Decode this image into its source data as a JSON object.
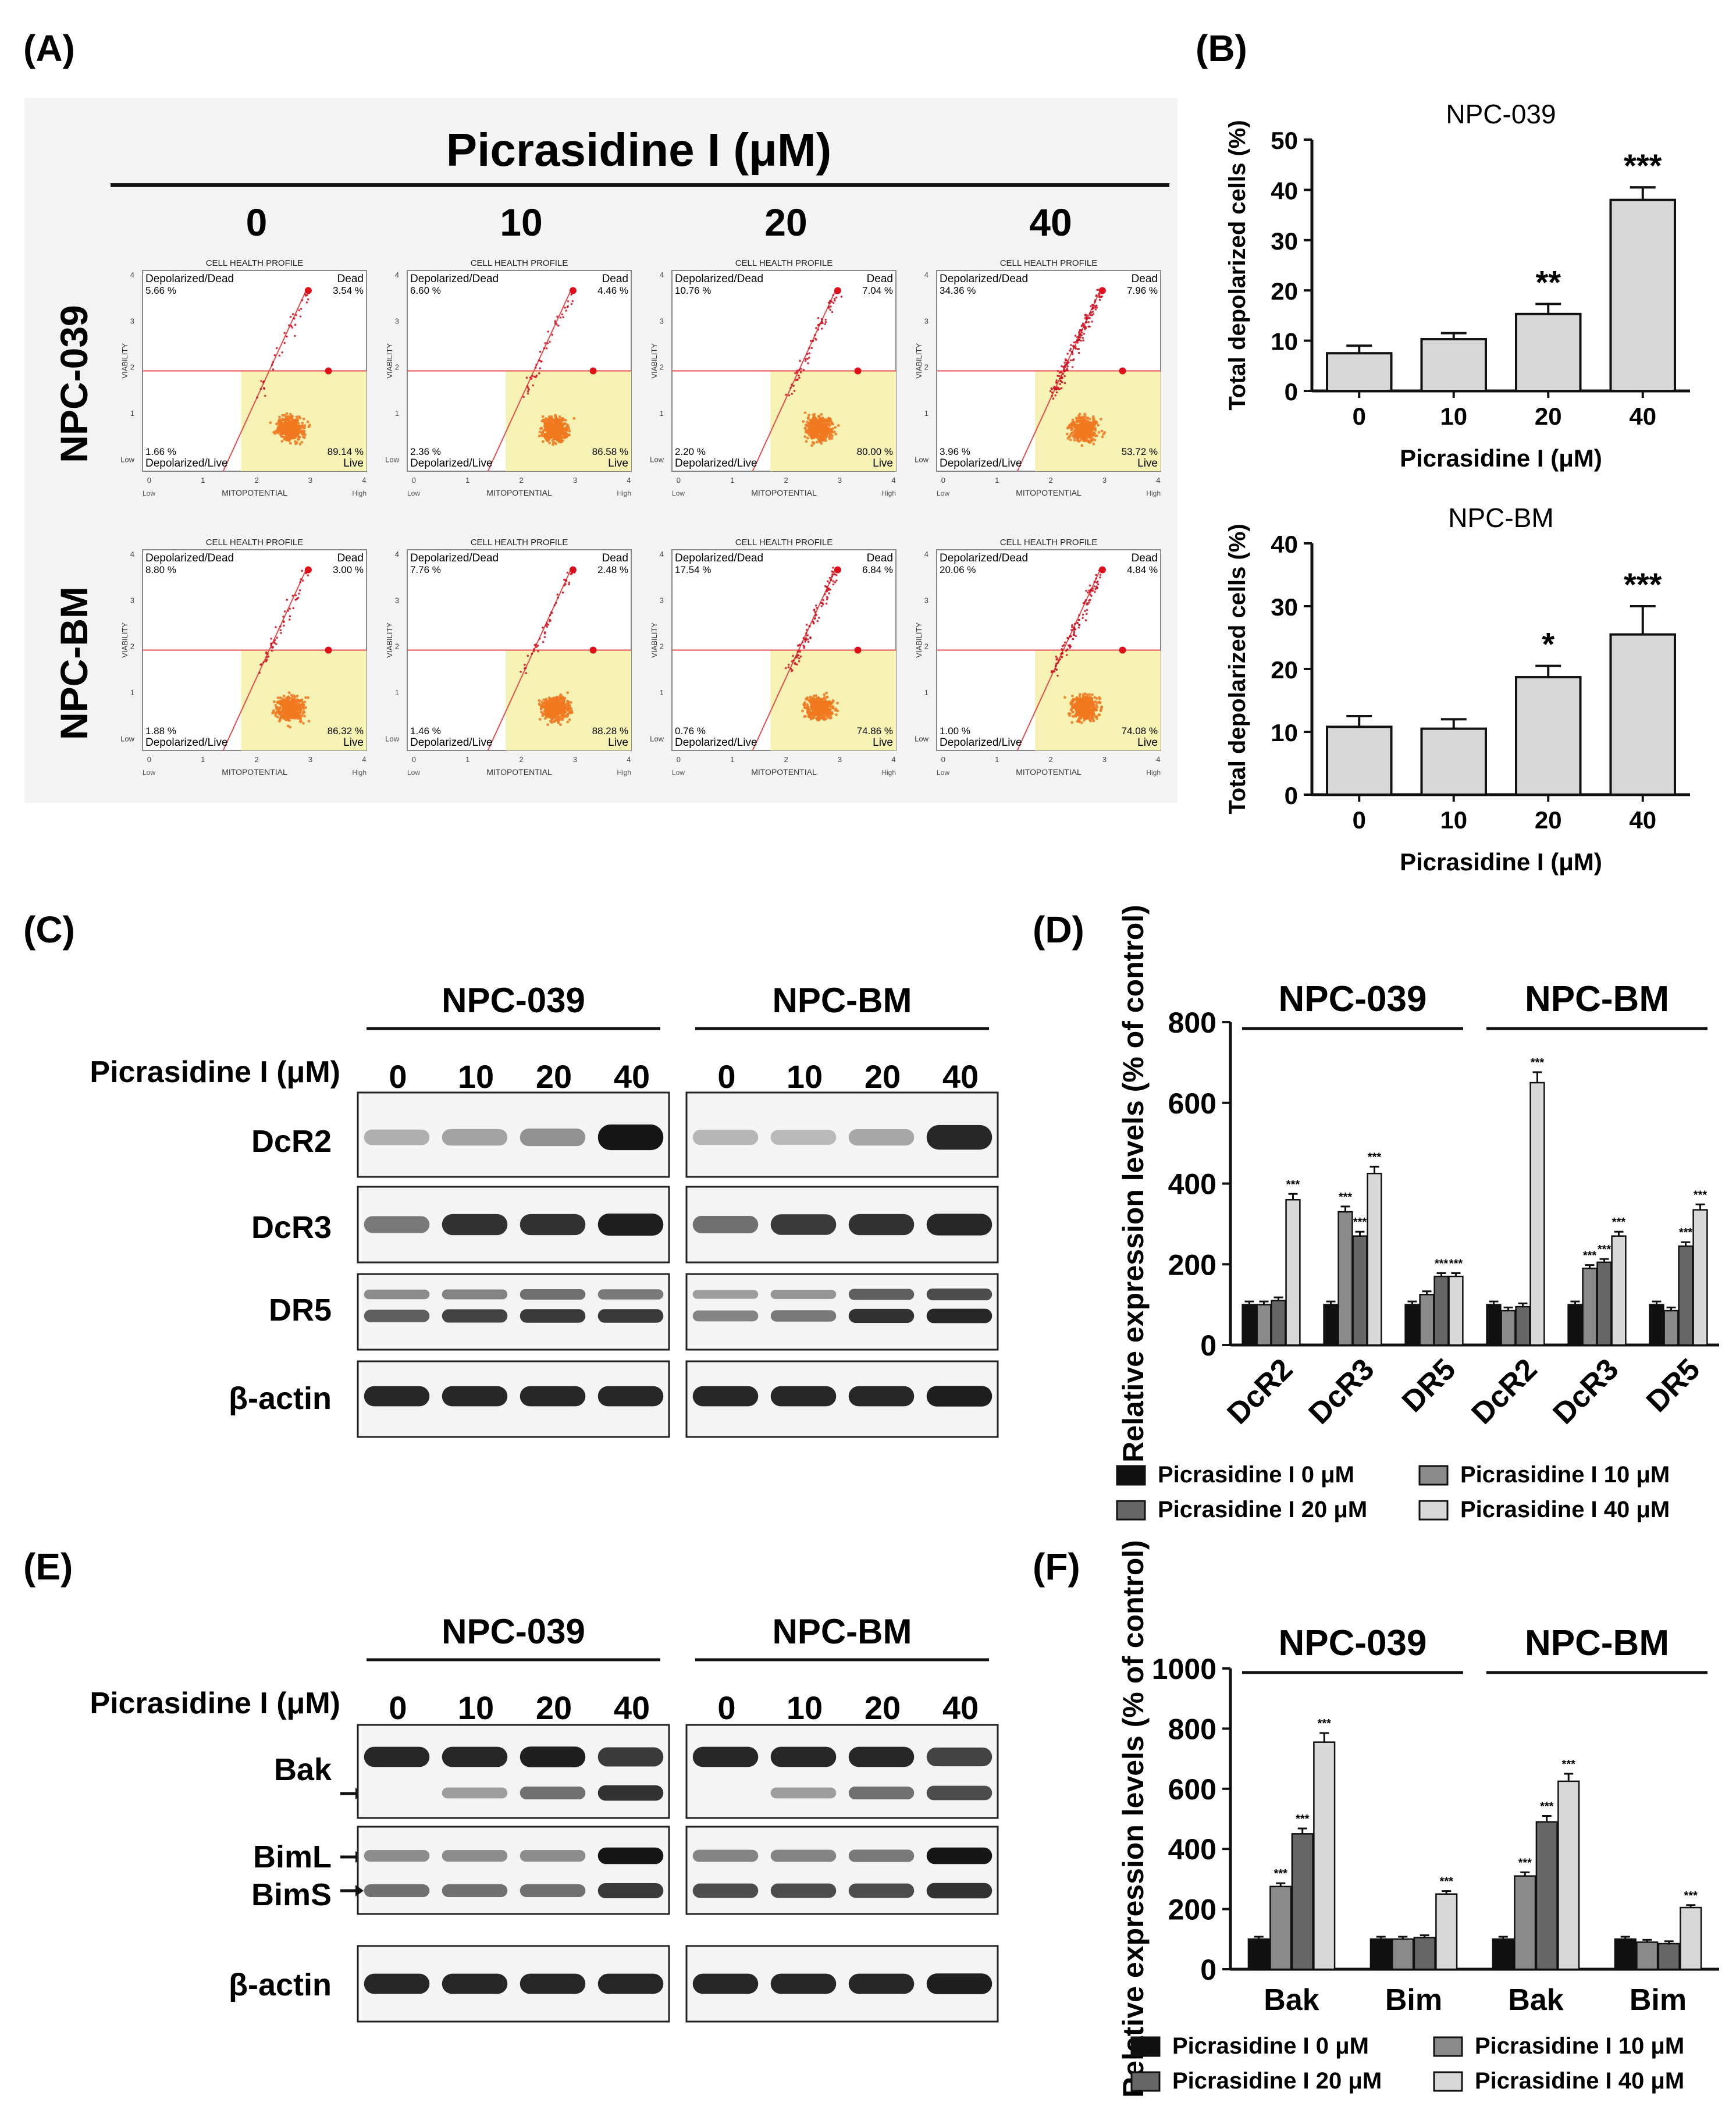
{
  "panels": {
    "A": "(A)",
    "B": "(B)",
    "C": "(C)",
    "D": "(D)",
    "E": "(E)",
    "F": "(F)"
  },
  "panel_a": {
    "title": "Picrasidine I (μM)",
    "doses": [
      "0",
      "10",
      "20",
      "40"
    ],
    "rows": [
      "NPC-039",
      "NPC-BM"
    ],
    "plot_header": "CELL HEALTH PROFILE",
    "quad_ul": "Depolarized/Dead",
    "quad_ur": "Dead",
    "quad_ll": "Depolarized/Live",
    "quad_lr": "Live",
    "x_axis": "MITOPOTENTIAL",
    "y_axis": "VIABILITY",
    "x_low": "Low",
    "x_high": "High",
    "y_ticks": [
      "4",
      "3",
      "2",
      "1",
      "Low"
    ],
    "x_ticks": [
      "0",
      "1",
      "2",
      "3",
      "4"
    ],
    "plots": [
      [
        {
          "ul": "5.66 %",
          "ur": "3.54 %",
          "ll": "1.66 %",
          "lr": "89.14 %",
          "dead": 0.4
        },
        {
          "ul": "6.60 %",
          "ur": "4.46 %",
          "ll": "2.36 %",
          "lr": "86.58 %",
          "dead": 0.5
        },
        {
          "ul": "10.76 %",
          "ur": "7.04 %",
          "ll": "2.20 %",
          "lr": "80.00 %",
          "dead": 0.75
        },
        {
          "ul": "34.36 %",
          "ur": "7.96 %",
          "ll": "3.96 %",
          "lr": "53.72 %",
          "dead": 1.8
        }
      ],
      [
        {
          "ul": "8.80 %",
          "ur": "3.00 %",
          "ll": "1.88 %",
          "lr": "86.32 %",
          "dead": 0.6
        },
        {
          "ul": "7.76 %",
          "ur": "2.48 %",
          "ll": "1.46 %",
          "lr": "88.28 %",
          "dead": 0.55
        },
        {
          "ul": "17.54 %",
          "ur": "6.84 %",
          "ll": "0.76 %",
          "lr": "74.86 %",
          "dead": 1.1
        },
        {
          "ul": "20.06 %",
          "ur": "4.84 %",
          "ll": "1.00 %",
          "lr": "74.08 %",
          "dead": 1.2
        }
      ]
    ],
    "colors": {
      "dead": "#cc1122",
      "live": "#f07820",
      "gate": "#f6f2b4",
      "line": "#e05050"
    }
  },
  "western_c": {
    "groups": [
      "NPC-039",
      "NPC-BM"
    ],
    "treatment_label": "Picrasidine  I (μM)",
    "doses": [
      "0",
      "10",
      "20",
      "40"
    ],
    "proteins": [
      "DcR2",
      "DcR3",
      "DR5",
      "β-actin"
    ]
  },
  "western_e": {
    "groups": [
      "NPC-039",
      "NPC-BM"
    ],
    "treatment_label": "Picrasidine  I (μM)",
    "doses": [
      "0",
      "10",
      "20",
      "40"
    ],
    "proteins": [
      "Bak",
      "BimL",
      "BimS",
      "β-actin"
    ]
  },
  "legend": {
    "items": [
      "Picrasidine I 0 μM",
      "Picrasidine I 10 μM",
      "Picrasidine I 20 μM",
      "Picrasidine I 40 μM"
    ],
    "colors": [
      "#111111",
      "#8a8a8a",
      "#666666",
      "#d8d8d8"
    ]
  },
  "chart_data": [
    {
      "id": "B1",
      "type": "bar",
      "title": "NPC-039",
      "categories": [
        "0",
        "10",
        "20",
        "40"
      ],
      "values": [
        7.5,
        10.3,
        15.3,
        38
      ],
      "errors": [
        1.5,
        1.2,
        2.0,
        2.5
      ],
      "significance": [
        "",
        "",
        "**",
        "***"
      ],
      "xlabel": "Picrasidine I (μM)",
      "ylabel": "Total depolarized cells (%)",
      "ylim": [
        0,
        50
      ],
      "yticks": [
        "0",
        "10",
        "20",
        "30",
        "40",
        "50"
      ]
    },
    {
      "id": "B2",
      "type": "bar",
      "title": "NPC-BM",
      "categories": [
        "0",
        "10",
        "20",
        "40"
      ],
      "values": [
        10.8,
        10.5,
        18.7,
        25.5
      ],
      "errors": [
        1.7,
        1.5,
        1.8,
        4.5
      ],
      "significance": [
        "",
        "",
        "*",
        "***"
      ],
      "xlabel": "Picrasidine I (μM)",
      "ylabel": "Total depolarized cells (%)",
      "ylim": [
        0,
        40
      ],
      "yticks": [
        "0",
        "10",
        "20",
        "30",
        "40"
      ]
    },
    {
      "id": "D",
      "type": "bar",
      "group_titles": [
        "NPC-039",
        "NPC-BM"
      ],
      "categories": [
        "DcR2",
        "DcR3",
        "DR5",
        "DcR2",
        "DcR3",
        "DR5"
      ],
      "series": [
        {
          "name": "Picrasidine I 0 μM",
          "values": [
            100,
            100,
            100,
            100,
            100,
            100
          ]
        },
        {
          "name": "Picrasidine I 10 μM",
          "values": [
            100,
            330,
            125,
            85,
            190,
            85
          ]
        },
        {
          "name": "Picrasidine I 20 μM",
          "values": [
            110,
            270,
            170,
            95,
            205,
            245
          ]
        },
        {
          "name": "Picrasidine I 40 μM",
          "values": [
            360,
            425,
            170,
            650,
            270,
            335
          ]
        }
      ],
      "significance_label": "***",
      "ylabel": "Relative expression levels (% of control)",
      "ylim": [
        0,
        800
      ],
      "yticks": [
        "0",
        "200",
        "400",
        "600",
        "800"
      ]
    },
    {
      "id": "F",
      "type": "bar",
      "group_titles": [
        "NPC-039",
        "NPC-BM"
      ],
      "categories": [
        "Bak",
        "Bim",
        "Bak",
        "Bim"
      ],
      "series": [
        {
          "name": "Picrasidine I 0 μM",
          "values": [
            100,
            100,
            100,
            100
          ]
        },
        {
          "name": "Picrasidine I 10 μM",
          "values": [
            275,
            100,
            310,
            90
          ]
        },
        {
          "name": "Picrasidine I 20 μM",
          "values": [
            450,
            105,
            490,
            85
          ]
        },
        {
          "name": "Picrasidine I 40 μM",
          "values": [
            755,
            250,
            625,
            205
          ]
        }
      ],
      "significance_label": "***",
      "ylabel": "Relative expression levels (% of control)",
      "ylim": [
        0,
        1000
      ],
      "yticks": [
        "0",
        "200",
        "400",
        "600",
        "800",
        "1000"
      ]
    }
  ]
}
